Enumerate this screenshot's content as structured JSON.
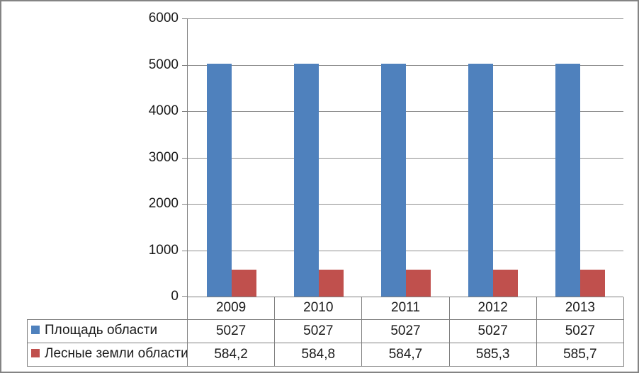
{
  "chart_data": {
    "type": "bar",
    "title": "",
    "xlabel": "",
    "ylabel": "",
    "categories": [
      "2009",
      "2010",
      "2011",
      "2012",
      "2013"
    ],
    "series": [
      {
        "name": "Площадь области",
        "values": [
          5027,
          5027,
          5027,
          5027,
          5027
        ],
        "labels": [
          "5027",
          "5027",
          "5027",
          "5027",
          "5027"
        ],
        "color": "#4F81BD"
      },
      {
        "name": "Лесные земли области",
        "values": [
          584.2,
          584.8,
          584.7,
          585.3,
          585.7
        ],
        "labels": [
          "584,2",
          "584,8",
          "584,7",
          "585,3",
          "585,7"
        ],
        "color": "#C0504D"
      }
    ],
    "ylim": [
      0,
      6000
    ],
    "yticks": [
      0,
      1000,
      2000,
      3000,
      4000,
      5000,
      6000
    ],
    "ytick_labels": [
      "0",
      "1000",
      "2000",
      "3000",
      "4000",
      "5000",
      "6000"
    ],
    "grid": true,
    "legend_position": "data-table-left",
    "layout": "clustered-bars-with-data-table"
  },
  "style": {
    "series_colors": [
      "#4F81BD",
      "#C0504D"
    ],
    "gridline_color": "#8E8E8E",
    "axis_color": "#7F7F7F",
    "table_border_color": "#808080",
    "text_color": "#1A1A1A",
    "frame_border_color": "#848484",
    "background_color": "#FFFFFF"
  }
}
